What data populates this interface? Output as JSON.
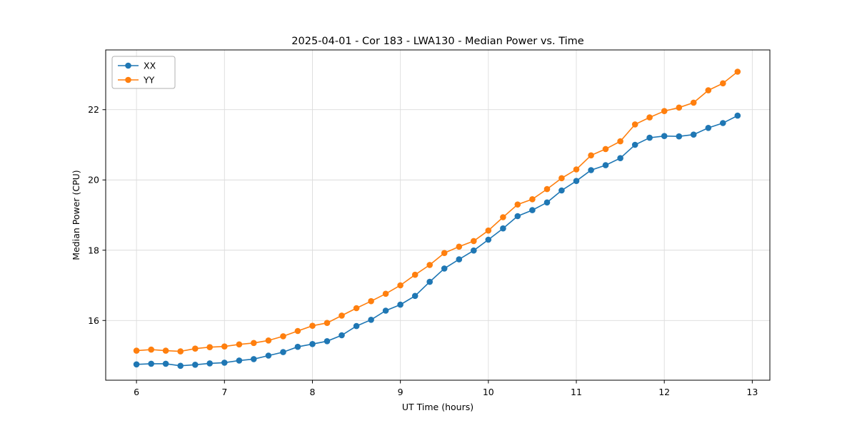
{
  "chart_data": {
    "type": "line",
    "title": "2025-04-01 - Cor 183 - LWA130 - Median Power vs. Time",
    "xlabel": "UT Time (hours)",
    "ylabel": "Median Power (CPU)",
    "xlim": [
      5.65,
      13.2
    ],
    "ylim": [
      14.3,
      23.7
    ],
    "xticks": [
      6,
      7,
      8,
      9,
      10,
      11,
      12,
      13
    ],
    "yticks": [
      16,
      18,
      20,
      22
    ],
    "grid": true,
    "legend_position": "upper left",
    "marker": "circle",
    "x": [
      6.0,
      6.167,
      6.333,
      6.5,
      6.667,
      6.833,
      7.0,
      7.167,
      7.333,
      7.5,
      7.667,
      7.833,
      8.0,
      8.167,
      8.333,
      8.5,
      8.667,
      8.833,
      9.0,
      9.167,
      9.333,
      9.5,
      9.667,
      9.833,
      10.0,
      10.167,
      10.333,
      10.5,
      10.667,
      10.833,
      11.0,
      11.167,
      11.333,
      11.5,
      11.667,
      11.833,
      12.0,
      12.167,
      12.333,
      12.5,
      12.667,
      12.833
    ],
    "series": [
      {
        "name": "XX",
        "color": "#1f77b4",
        "values": [
          14.75,
          14.77,
          14.77,
          14.71,
          14.74,
          14.78,
          14.8,
          14.86,
          14.9,
          15.0,
          15.1,
          15.25,
          15.33,
          15.41,
          15.58,
          15.84,
          16.02,
          16.28,
          16.45,
          16.7,
          17.1,
          17.48,
          17.74,
          17.99,
          18.3,
          18.62,
          18.97,
          19.14,
          19.36,
          19.7,
          19.97,
          20.28,
          20.42,
          20.62,
          21.0,
          21.2,
          21.25,
          21.24,
          21.29,
          21.48,
          21.62,
          21.83
        ]
      },
      {
        "name": "YY",
        "color": "#ff7f0e",
        "values": [
          15.14,
          15.17,
          15.14,
          15.12,
          15.2,
          15.24,
          15.26,
          15.32,
          15.36,
          15.43,
          15.55,
          15.7,
          15.85,
          15.93,
          16.14,
          16.35,
          16.55,
          16.76,
          17.0,
          17.3,
          17.58,
          17.92,
          18.1,
          18.26,
          18.56,
          18.94,
          19.3,
          19.45,
          19.74,
          20.05,
          20.3,
          20.7,
          20.88,
          21.1,
          21.58,
          21.78,
          21.96,
          22.06,
          22.2,
          22.55,
          22.75,
          23.08
        ]
      }
    ]
  }
}
